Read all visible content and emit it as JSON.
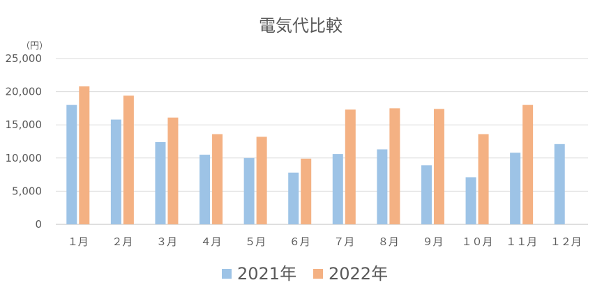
{
  "chart_data": {
    "type": "bar",
    "title": "電気代比較",
    "unit_label": "（円）",
    "categories": [
      "１月",
      "２月",
      "３月",
      "４月",
      "５月",
      "６月",
      "７月",
      "８月",
      "９月",
      "１０月",
      "１１月",
      "１２月"
    ],
    "series": [
      {
        "name": "2021年",
        "color": "#9dc3e6",
        "values": [
          18000,
          15800,
          12400,
          10500,
          10000,
          7800,
          10600,
          11300,
          8900,
          7100,
          10800,
          12100
        ]
      },
      {
        "name": "2022年",
        "color": "#f4b183",
        "values": [
          20800,
          19400,
          16100,
          13600,
          13200,
          9900,
          17300,
          17500,
          17400,
          13600,
          18000,
          null
        ]
      }
    ],
    "y_ticks": [
      "0",
      "5,000",
      "10,000",
      "15,000",
      "20,000",
      "25,000"
    ],
    "ylim": [
      0,
      25000
    ],
    "grid": true,
    "legend_position": "bottom"
  }
}
